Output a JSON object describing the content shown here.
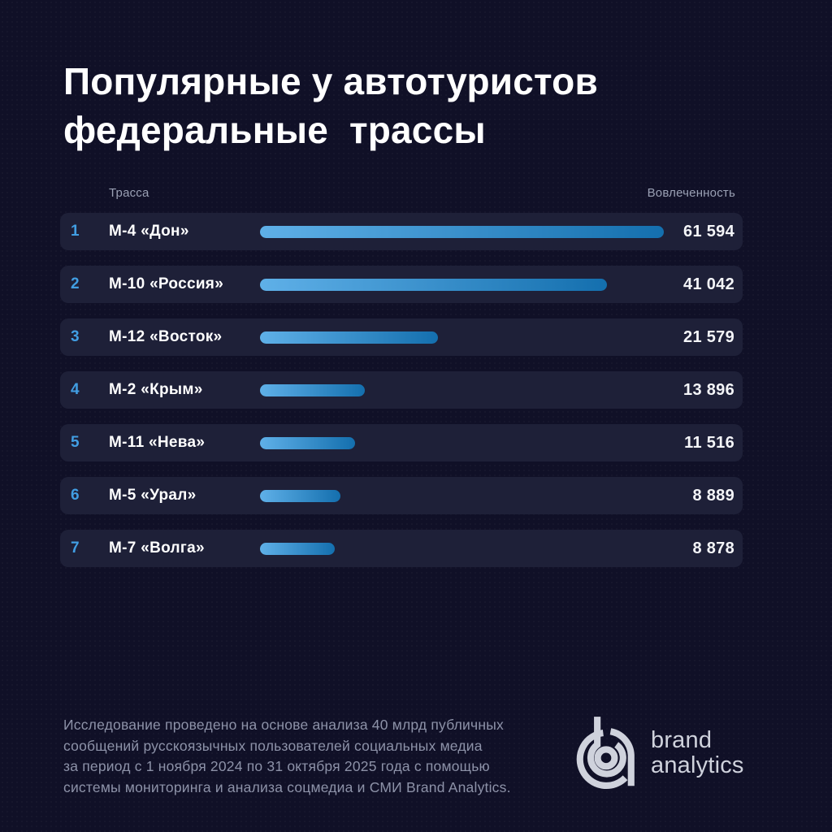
{
  "page": {
    "title": "Популярные у автотуристов\nфедеральные  трассы"
  },
  "table": {
    "columns": {
      "road": "Трасса",
      "engagement": "Вовлеченность"
    },
    "rows": [
      {
        "rank": "1",
        "name": "М-4 «Дон»",
        "value": "61 594",
        "bar_ratio": 1.0
      },
      {
        "rank": "2",
        "name": "М-10 «Россия»",
        "value": "41 042",
        "bar_ratio": 0.86
      },
      {
        "rank": "3",
        "name": "М-12 «Восток»",
        "value": "21 579",
        "bar_ratio": 0.44
      },
      {
        "rank": "4",
        "name": "М-2 «Крым»",
        "value": "13 896",
        "bar_ratio": 0.26
      },
      {
        "rank": "5",
        "name": "М-11 «Нева»",
        "value": "11 516",
        "bar_ratio": 0.235
      },
      {
        "rank": "6",
        "name": "М-5 «Урал»",
        "value": "8 889",
        "bar_ratio": 0.2
      },
      {
        "rank": "7",
        "name": "М-7 «Волга»",
        "value": "8 878",
        "bar_ratio": 0.185
      }
    ]
  },
  "chart_data": {
    "type": "bar",
    "orientation": "horizontal",
    "title": "Популярные у автотуристов федеральные трассы",
    "categories": [
      "М-4 «Дон»",
      "М-10 «Россия»",
      "М-12 «Восток»",
      "М-2 «Крым»",
      "М-11 «Нева»",
      "М-5 «Урал»",
      "М-7 «Волга»"
    ],
    "values": [
      61594,
      41042,
      21579,
      13896,
      11516,
      8889,
      8878
    ],
    "value_labels": [
      "61 594",
      "41 042",
      "21 579",
      "13 896",
      "11 516",
      "8 889",
      "8 878"
    ],
    "ranks": [
      1,
      2,
      3,
      4,
      5,
      6,
      7
    ],
    "xlabel": "Вовлеченность",
    "ylabel": "Трасса",
    "grid": false,
    "legend": "none",
    "value_label_position": "right"
  },
  "footnote": "Исследование проведено на основе анализа 40 млрд публичных\nсообщений русскоязычных пользователей социальных медиа\nза период с 1 ноября 2024 по 31 октября 2025 года с помощью\nсистемы мониторинга и анализа соцмедиа и СМИ Brand Analytics.",
  "logo": {
    "line1": "brand",
    "line2": "analytics"
  },
  "colors": {
    "page_bg": "#101027",
    "row_bg": "#1e2038",
    "rank": "#419ee3",
    "bar_start": "#5fb0e8",
    "bar_end": "#146fae",
    "title": "#ffffff",
    "header": "#9aa0b4",
    "value": "#f4f5f8",
    "footnote": "#8d92a8",
    "logo": "#cfd2dc"
  }
}
